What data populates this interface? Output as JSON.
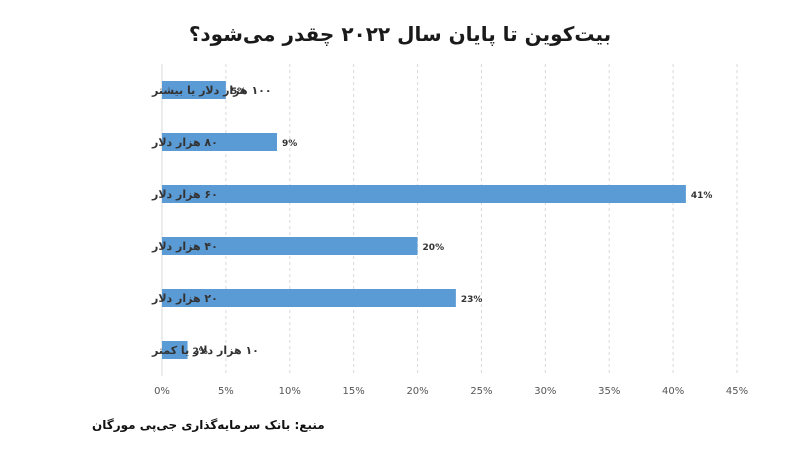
{
  "title": "بیت‌کوین تا پایان سال ۲۰۲۲ چقدر می‌شود؟",
  "source": "منبع: بانک سرمایه‌گذاری جی‌پی مورگان",
  "chart_data": {
    "type": "bar",
    "orientation": "horizontal",
    "title": "بیت‌کوین تا پایان سال ۲۰۲۲ چقدر می‌شود؟",
    "categories": [
      "۱۰۰ هزار دلار یا بیشتر",
      "۸۰ هزار دلار",
      "۶۰ هزار دلار",
      "۴۰ هزار دلار",
      "۲۰ هزار دلار",
      "۱۰ هزار دلار یا کمتر"
    ],
    "values": [
      5,
      9,
      41,
      20,
      23,
      2
    ],
    "data_labels": [
      "5%",
      "9%",
      "41%",
      "20%",
      "23%",
      "2%"
    ],
    "xlim": [
      0,
      45
    ],
    "xticks": [
      "0%",
      "5%",
      "10%",
      "15%",
      "20%",
      "25%",
      "30%",
      "35%",
      "40%",
      "45%"
    ],
    "xlabel": "",
    "ylabel": "",
    "grid": "vertical-dashed",
    "legend": "none",
    "bar_color": "#5b9bd5"
  }
}
